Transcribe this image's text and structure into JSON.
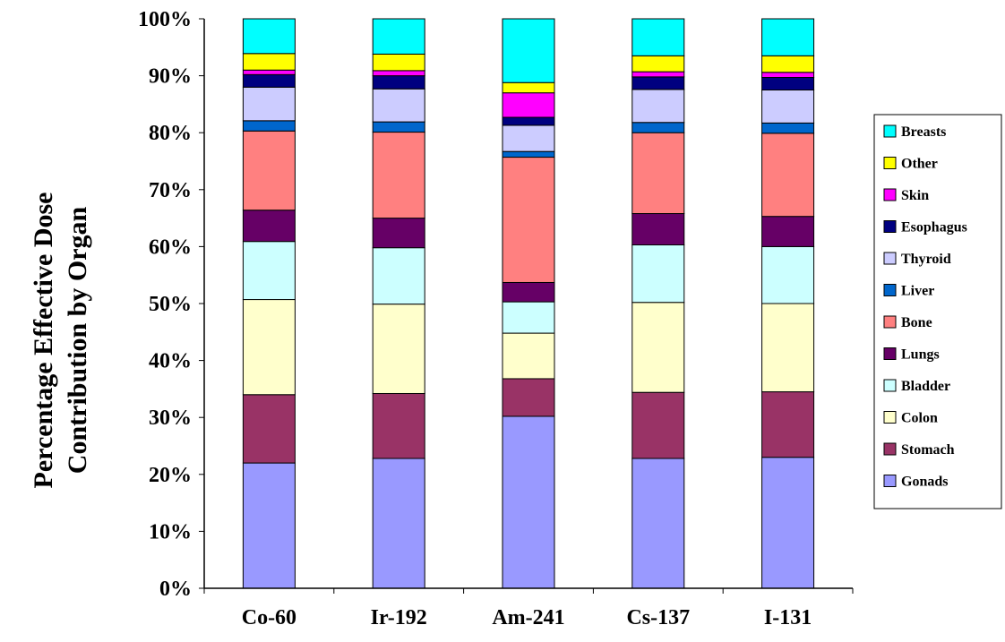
{
  "chart_data": {
    "type": "bar",
    "stacked": true,
    "percent": true,
    "ylabel_lines": [
      "Percentage Effective Dose",
      "Contribution by Organ"
    ],
    "xlabel": "",
    "ylim": [
      0,
      100
    ],
    "yticks": [
      "0%",
      "10%",
      "20%",
      "30%",
      "40%",
      "50%",
      "60%",
      "70%",
      "80%",
      "90%",
      "100%"
    ],
    "categories": [
      "Co-60",
      "Ir-192",
      "Am-241",
      "Cs-137",
      "I-131"
    ],
    "legend_position": "right",
    "grid": false,
    "series": [
      {
        "name": "Gonads",
        "color": "#9999FF",
        "values": [
          22.0,
          22.8,
          30.2,
          22.8,
          23.0
        ]
      },
      {
        "name": "Stomach",
        "color": "#993366",
        "values": [
          12.0,
          11.4,
          6.6,
          11.6,
          11.5
        ]
      },
      {
        "name": "Colon",
        "color": "#FFFFCC",
        "values": [
          16.7,
          15.7,
          8.0,
          15.8,
          15.5
        ]
      },
      {
        "name": "Bladder",
        "color": "#CCFFFF",
        "values": [
          10.2,
          9.9,
          5.5,
          10.1,
          10.0
        ]
      },
      {
        "name": "Lungs",
        "color": "#660066",
        "values": [
          5.5,
          5.2,
          3.4,
          5.5,
          5.3
        ]
      },
      {
        "name": "Bone",
        "color": "#FF8080",
        "values": [
          13.9,
          15.1,
          22.0,
          14.2,
          14.6
        ]
      },
      {
        "name": "Liver",
        "color": "#0066CC",
        "values": [
          1.8,
          1.8,
          1.0,
          1.8,
          1.8
        ]
      },
      {
        "name": "Thyroid",
        "color": "#CCCCFF",
        "values": [
          5.9,
          5.8,
          4.6,
          5.8,
          5.8
        ]
      },
      {
        "name": "Esophagus",
        "color": "#000080",
        "values": [
          2.2,
          2.3,
          1.4,
          2.2,
          2.2
        ]
      },
      {
        "name": "Skin",
        "color": "#FF00FF",
        "values": [
          0.8,
          0.9,
          4.3,
          0.9,
          0.9
        ]
      },
      {
        "name": "Other",
        "color": "#FFFF00",
        "values": [
          2.9,
          2.9,
          1.8,
          2.8,
          2.9
        ]
      },
      {
        "name": "Breasts",
        "color": "#00FFFF",
        "values": [
          6.1,
          6.2,
          11.2,
          6.5,
          6.5
        ]
      }
    ]
  }
}
